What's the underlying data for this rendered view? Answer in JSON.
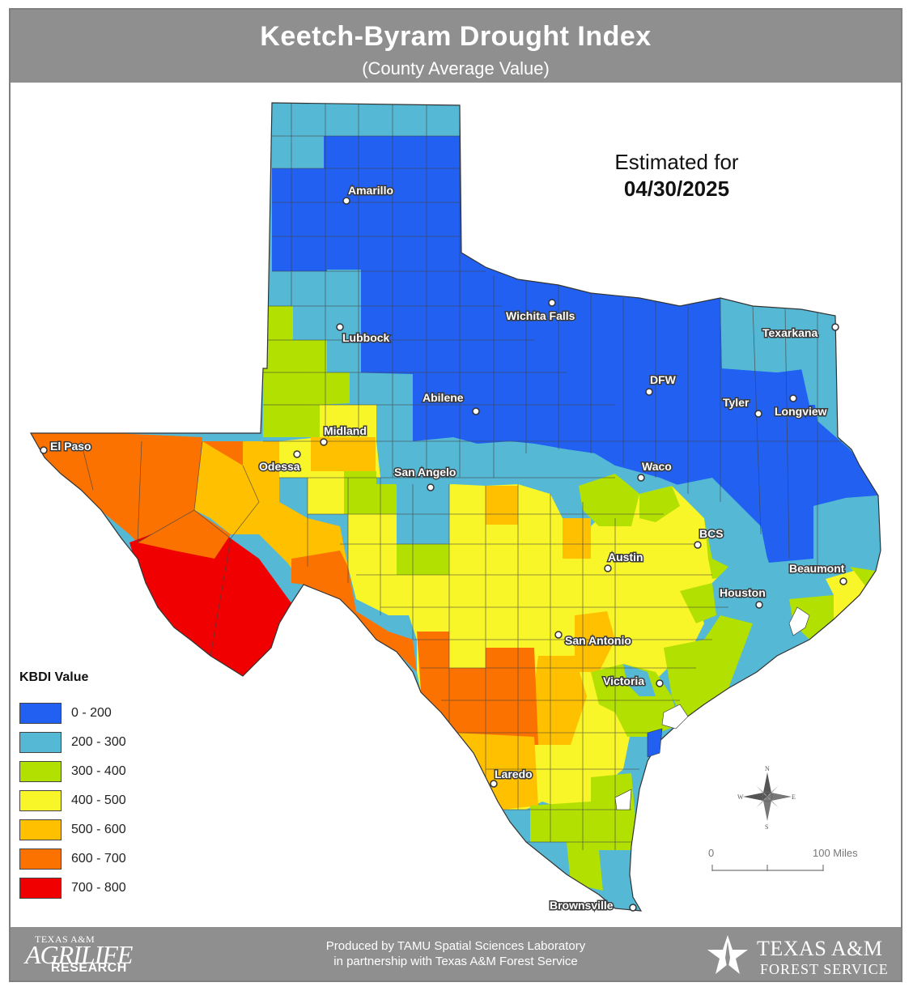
{
  "header": {
    "title": "Keetch-Byram Drought Index",
    "subtitle": "(County Average Value)"
  },
  "estimate": {
    "label": "Estimated for",
    "date": "04/30/2025"
  },
  "legend": {
    "title": "KBDI Value",
    "items": [
      {
        "label": "0 - 200",
        "color": "#2160f0"
      },
      {
        "label": "200 - 300",
        "color": "#55b8d4"
      },
      {
        "label": "300 - 400",
        "color": "#b2e000"
      },
      {
        "label": "400 - 500",
        "color": "#f8f528"
      },
      {
        "label": "500 - 600",
        "color": "#ffc000"
      },
      {
        "label": "600 - 700",
        "color": "#fb7200"
      },
      {
        "label": "700 - 800",
        "color": "#f00000"
      }
    ]
  },
  "cities": [
    {
      "name": "Amarillo"
    },
    {
      "name": "Lubbock"
    },
    {
      "name": "Wichita Falls"
    },
    {
      "name": "Texarkana"
    },
    {
      "name": "DFW"
    },
    {
      "name": "Tyler"
    },
    {
      "name": "Longview"
    },
    {
      "name": "Abilene"
    },
    {
      "name": "Midland"
    },
    {
      "name": "Odessa"
    },
    {
      "name": "El Paso"
    },
    {
      "name": "San Angelo"
    },
    {
      "name": "Waco"
    },
    {
      "name": "BCS"
    },
    {
      "name": "Austin"
    },
    {
      "name": "Beaumont"
    },
    {
      "name": "Houston"
    },
    {
      "name": "San Antonio"
    },
    {
      "name": "Victoria"
    },
    {
      "name": "Laredo"
    },
    {
      "name": "Brownsville"
    }
  ],
  "compass": {
    "n": "N",
    "s": "S",
    "e": "E",
    "w": "W"
  },
  "scale": {
    "start": "0",
    "end": "100 Miles"
  },
  "footer": {
    "produced_line1": "Produced by TAMU Spatial Sciences Laboratory",
    "produced_line2": "in partnership with Texas A&M Forest Service",
    "left_logo_line1": "TEXAS A&M",
    "left_logo_line2": "AGRILIFE",
    "left_logo_line3": "RESEARCH",
    "right_logo_line1": "TEXAS A&M",
    "right_logo_line2": "FOREST SERVICE"
  }
}
